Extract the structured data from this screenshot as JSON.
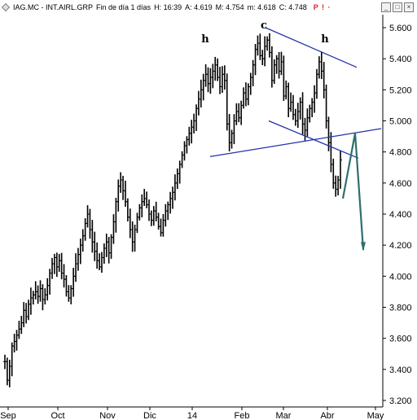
{
  "header": {
    "symbol": "IAG.MC - INT.AIRL.GRP",
    "period": "Fin de día 1 días",
    "h": "H: 16:39",
    "a": "A: 4.619",
    "m": "M: 4.754",
    "lo": "m: 4.618",
    "c": "C: 4.748",
    "flags": "P ! ·"
  },
  "chart_data": {
    "type": "ohlc",
    "title": "",
    "ylim": [
      3.2,
      5.7
    ],
    "y_ticks": [
      "5.600",
      "5.400",
      "5.200",
      "5.000",
      "4.800",
      "4.600",
      "4.400",
      "4.200",
      "4.000",
      "3.800",
      "3.600",
      "3.400",
      "3.200"
    ],
    "x_ticks": [
      "Sep",
      "Oct",
      "Nov",
      "Dic",
      "14",
      "Feb",
      "Mar",
      "Abr",
      "May"
    ],
    "grid": false,
    "annotations": [
      "h",
      "c",
      "h"
    ],
    "series_close": [
      3.45,
      3.33,
      3.42,
      3.55,
      3.58,
      3.62,
      3.66,
      3.7,
      3.78,
      3.74,
      3.82,
      3.86,
      3.88,
      3.9,
      3.87,
      3.92,
      3.85,
      3.88,
      3.94,
      4.02,
      4.08,
      4.12,
      4.06,
      4.1,
      4.02,
      3.98,
      3.9,
      3.86,
      3.92,
      4.0,
      4.08,
      4.14,
      4.2,
      4.26,
      4.34,
      4.4,
      4.3,
      4.22,
      4.16,
      4.1,
      4.06,
      4.12,
      4.18,
      4.22,
      4.15,
      4.25,
      4.35,
      4.48,
      4.58,
      4.62,
      4.55,
      4.48,
      4.38,
      4.3,
      4.22,
      4.3,
      4.38,
      4.44,
      4.48,
      4.5,
      4.46,
      4.4,
      4.36,
      4.42,
      4.38,
      4.32,
      4.28,
      4.36,
      4.42,
      4.46,
      4.5,
      4.54,
      4.6,
      4.66,
      4.72,
      4.78,
      4.84,
      4.88,
      4.92,
      4.96,
      5.0,
      5.08,
      5.14,
      5.2,
      5.26,
      5.3,
      5.24,
      5.28,
      5.32,
      5.36,
      5.28,
      5.22,
      5.3,
      5.26,
      4.98,
      4.86,
      4.92,
      5.0,
      5.06,
      5.02,
      5.1,
      5.18,
      5.14,
      5.22,
      5.28,
      5.36,
      5.46,
      5.5,
      5.42,
      5.4,
      5.48,
      5.52,
      5.44,
      5.26,
      5.36,
      5.4,
      5.32,
      5.38,
      5.16,
      5.22,
      5.08,
      5.12,
      5.04,
      5.0,
      5.06,
      5.12,
      4.98,
      4.94,
      5.02,
      5.08,
      5.12,
      5.18,
      5.3,
      5.38,
      5.32,
      5.2,
      5.0,
      4.86,
      4.72,
      4.6,
      4.56,
      4.62,
      4.748
    ],
    "projection": {
      "up_from": [
        4.5,
        "Abr"
      ],
      "up_to": [
        4.92,
        "late Abr"
      ],
      "down_to": [
        4.17,
        "late Abr"
      ]
    },
    "trendlines": [
      "neckline rising 4.77 to 4.95",
      "upper channel 5.60 to 5.34",
      "lower channel 5.00 to 4.76"
    ]
  }
}
